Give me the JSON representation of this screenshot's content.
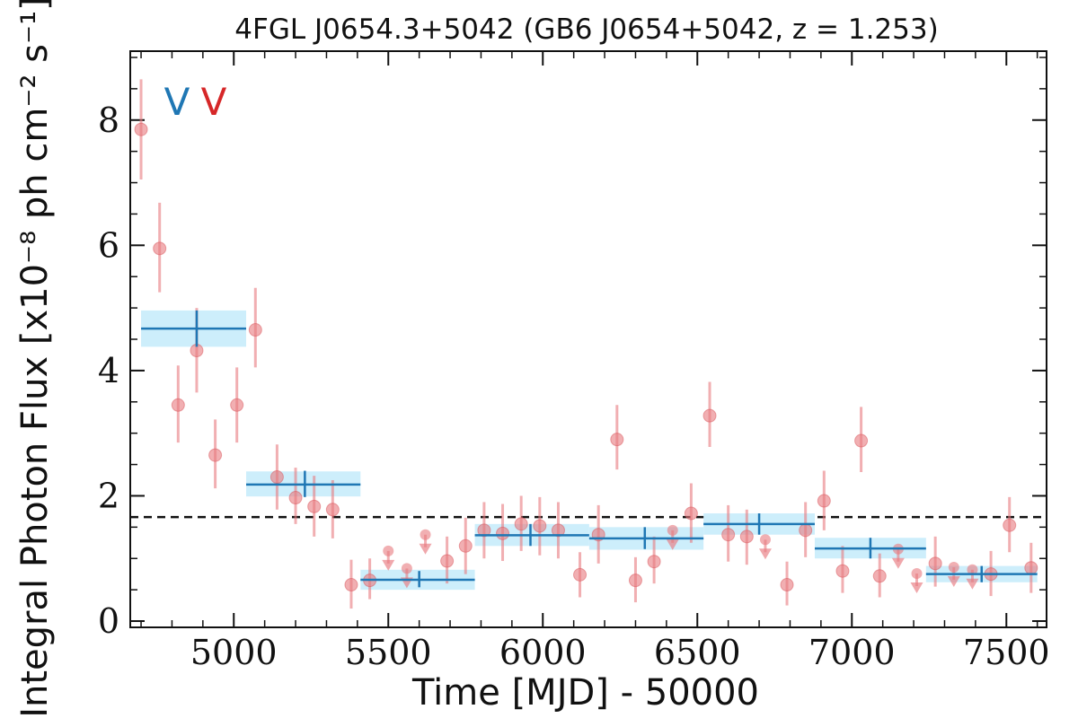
{
  "chart_data": {
    "type": "scatter",
    "title": "4FGL J0654.3+5042 (GB6 J0654+5042, z = 1.253)",
    "xlabel": "Time [MJD] - 50000",
    "ylabel": "Integral Photon Flux [x10⁻⁸ ph cm⁻² s⁻¹]",
    "xlim": [
      4665,
      7630
    ],
    "ylim": [
      -0.1,
      9.1
    ],
    "xticks": [
      5000,
      5500,
      6000,
      6500,
      7000,
      7500
    ],
    "xtick_labels": [
      "5000",
      "5500",
      "6000",
      "6500",
      "7000",
      "7500"
    ],
    "yticks": [
      0,
      2,
      4,
      6,
      8
    ],
    "ytick_labels": [
      "0",
      "2",
      "4",
      "6",
      "8"
    ],
    "grid": false,
    "reference_line": {
      "y": 1.66,
      "style": "dashed"
    },
    "markers": [
      {
        "label": "V",
        "color": "#1f77b4"
      },
      {
        "label": "V",
        "color": "#d62728"
      }
    ],
    "colors": {
      "points": "#e8797f",
      "bins": "#1f77b4",
      "bin_band": "#cdeefb"
    },
    "points": [
      {
        "x": 4700,
        "y": 7.85,
        "lo": 7.05,
        "hi": 8.65
      },
      {
        "x": 4760,
        "y": 5.95,
        "lo": 5.25,
        "hi": 6.68
      },
      {
        "x": 4820,
        "y": 3.45,
        "lo": 2.85,
        "hi": 4.08
      },
      {
        "x": 4880,
        "y": 4.32,
        "lo": 3.65,
        "hi": 5.0
      },
      {
        "x": 4940,
        "y": 2.65,
        "lo": 2.12,
        "hi": 3.22
      },
      {
        "x": 5010,
        "y": 3.45,
        "lo": 2.85,
        "hi": 4.05
      },
      {
        "x": 5070,
        "y": 4.65,
        "lo": 4.05,
        "hi": 5.32
      },
      {
        "x": 5140,
        "y": 2.3,
        "lo": 1.78,
        "hi": 2.82
      },
      {
        "x": 5200,
        "y": 1.97,
        "lo": 1.55,
        "hi": 2.45
      },
      {
        "x": 5260,
        "y": 1.83,
        "lo": 1.35,
        "hi": 2.32
      },
      {
        "x": 5320,
        "y": 1.78,
        "lo": 1.32,
        "hi": 2.25
      },
      {
        "x": 5380,
        "y": 0.58,
        "lo": 0.2,
        "hi": 0.98
      },
      {
        "x": 5440,
        "y": 0.65,
        "lo": 0.35,
        "hi": 1.0
      },
      {
        "x": 5500,
        "y": 1.12,
        "upper_limit": true
      },
      {
        "x": 5560,
        "y": 0.84,
        "upper_limit": true
      },
      {
        "x": 5620,
        "y": 1.38,
        "upper_limit": true
      },
      {
        "x": 5690,
        "y": 0.96,
        "lo": 0.6,
        "hi": 1.35
      },
      {
        "x": 5750,
        "y": 1.2,
        "lo": 0.75,
        "hi": 1.65
      },
      {
        "x": 5810,
        "y": 1.45,
        "lo": 1.0,
        "hi": 1.9
      },
      {
        "x": 5870,
        "y": 1.4,
        "lo": 0.96,
        "hi": 1.87
      },
      {
        "x": 5930,
        "y": 1.55,
        "lo": 1.12,
        "hi": 2.0
      },
      {
        "x": 5990,
        "y": 1.52,
        "lo": 1.05,
        "hi": 1.98
      },
      {
        "x": 6050,
        "y": 1.45,
        "lo": 1.0,
        "hi": 1.9
      },
      {
        "x": 6120,
        "y": 0.74,
        "lo": 0.38,
        "hi": 1.1
      },
      {
        "x": 6180,
        "y": 1.38,
        "lo": 0.92,
        "hi": 1.85
      },
      {
        "x": 6240,
        "y": 2.9,
        "lo": 2.42,
        "hi": 3.45
      },
      {
        "x": 6300,
        "y": 0.65,
        "lo": 0.3,
        "hi": 1.02
      },
      {
        "x": 6360,
        "y": 0.95,
        "lo": 0.6,
        "hi": 1.35
      },
      {
        "x": 6420,
        "y": 1.45,
        "upper_limit": true
      },
      {
        "x": 6480,
        "y": 1.72,
        "lo": 1.25,
        "hi": 2.2
      },
      {
        "x": 6540,
        "y": 3.28,
        "lo": 2.78,
        "hi": 3.82
      },
      {
        "x": 6600,
        "y": 1.38,
        "lo": 0.95,
        "hi": 1.85
      },
      {
        "x": 6660,
        "y": 1.35,
        "lo": 0.9,
        "hi": 1.78
      },
      {
        "x": 6720,
        "y": 1.3,
        "upper_limit": true
      },
      {
        "x": 6790,
        "y": 0.58,
        "lo": 0.25,
        "hi": 0.95
      },
      {
        "x": 6850,
        "y": 1.45,
        "lo": 1.02,
        "hi": 1.9
      },
      {
        "x": 6910,
        "y": 1.92,
        "lo": 1.45,
        "hi": 2.4
      },
      {
        "x": 6970,
        "y": 0.8,
        "lo": 0.45,
        "hi": 1.2
      },
      {
        "x": 7030,
        "y": 2.88,
        "lo": 2.38,
        "hi": 3.42
      },
      {
        "x": 7090,
        "y": 0.72,
        "lo": 0.38,
        "hi": 1.08
      },
      {
        "x": 7150,
        "y": 1.15,
        "upper_limit": true
      },
      {
        "x": 7210,
        "y": 0.76,
        "upper_limit": true
      },
      {
        "x": 7270,
        "y": 0.92,
        "lo": 0.55,
        "hi": 1.35
      },
      {
        "x": 7330,
        "y": 0.86,
        "upper_limit": true
      },
      {
        "x": 7390,
        "y": 0.82,
        "upper_limit": true
      },
      {
        "x": 7450,
        "y": 0.75,
        "lo": 0.4,
        "hi": 1.12
      },
      {
        "x": 7510,
        "y": 1.53,
        "lo": 1.1,
        "hi": 1.98
      },
      {
        "x": 7580,
        "y": 0.85,
        "lo": 0.45,
        "hi": 1.25
      }
    ],
    "bins": [
      {
        "x0": 4700,
        "x1": 5040,
        "y": 4.67,
        "lo": 4.38,
        "hi": 4.96,
        "xc": 4880,
        "band_lo": 4.38,
        "band_hi": 4.96
      },
      {
        "x0": 5040,
        "x1": 5410,
        "y": 2.18,
        "lo": 1.98,
        "hi": 2.4,
        "xc": 5230,
        "band_lo": 1.99,
        "band_hi": 2.39
      },
      {
        "x0": 5410,
        "x1": 5780,
        "y": 0.66,
        "lo": 0.54,
        "hi": 0.8,
        "xc": 5600,
        "band_lo": 0.5,
        "band_hi": 0.82
      },
      {
        "x0": 5780,
        "x1": 6150,
        "y": 1.37,
        "lo": 1.2,
        "hi": 1.55,
        "xc": 5960,
        "band_lo": 1.2,
        "band_hi": 1.55
      },
      {
        "x0": 6150,
        "x1": 6520,
        "y": 1.32,
        "lo": 1.15,
        "hi": 1.5,
        "xc": 6330,
        "band_lo": 1.14,
        "band_hi": 1.5
      },
      {
        "x0": 6520,
        "x1": 6880,
        "y": 1.55,
        "lo": 1.38,
        "hi": 1.72,
        "xc": 6700,
        "band_lo": 1.38,
        "band_hi": 1.72
      },
      {
        "x0": 6880,
        "x1": 7240,
        "y": 1.16,
        "lo": 1.0,
        "hi": 1.33,
        "xc": 7060,
        "band_lo": 1.0,
        "band_hi": 1.33
      },
      {
        "x0": 7240,
        "x1": 7600,
        "y": 0.75,
        "lo": 0.62,
        "hi": 0.88,
        "xc": 7420,
        "band_lo": 0.62,
        "band_hi": 0.88
      }
    ]
  }
}
